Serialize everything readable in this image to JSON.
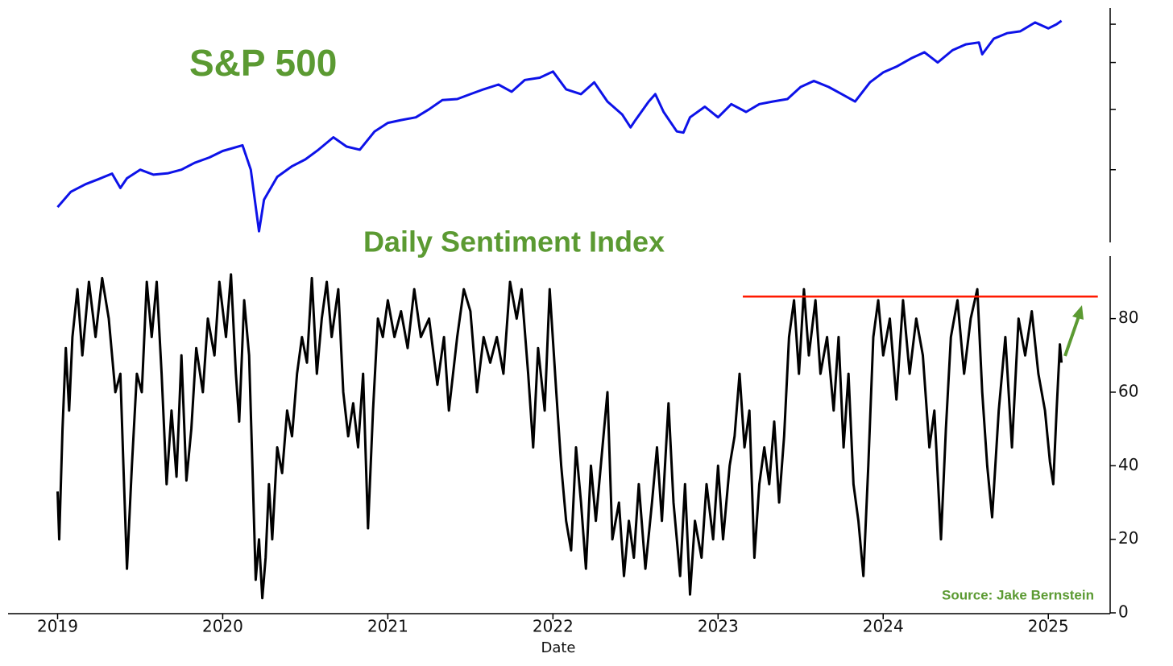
{
  "chart_data": [
    {
      "type": "line",
      "title": "S&P 500",
      "color": "#0d12e8",
      "log_scale": true,
      "tick_labels": false,
      "xlim": [
        2018.7,
        2025.36
      ],
      "ylim": [
        2130,
        6480
      ],
      "yticks": [
        3000,
        4000,
        5000,
        6000
      ],
      "x": [
        2019.0,
        2019.08,
        2019.17,
        2019.25,
        2019.33,
        2019.38,
        2019.42,
        2019.5,
        2019.58,
        2019.67,
        2019.75,
        2019.83,
        2019.92,
        2020.0,
        2020.12,
        2020.17,
        2020.22,
        2020.25,
        2020.33,
        2020.42,
        2020.5,
        2020.58,
        2020.67,
        2020.75,
        2020.83,
        2020.92,
        2021.0,
        2021.08,
        2021.17,
        2021.25,
        2021.33,
        2021.42,
        2021.5,
        2021.58,
        2021.67,
        2021.75,
        2021.83,
        2021.92,
        2022.0,
        2022.08,
        2022.17,
        2022.25,
        2022.33,
        2022.42,
        2022.47,
        2022.5,
        2022.58,
        2022.62,
        2022.67,
        2022.75,
        2022.79,
        2022.83,
        2022.92,
        2023.0,
        2023.08,
        2023.17,
        2023.25,
        2023.33,
        2023.42,
        2023.5,
        2023.58,
        2023.67,
        2023.75,
        2023.83,
        2023.92,
        2024.0,
        2024.08,
        2024.17,
        2024.25,
        2024.33,
        2024.42,
        2024.5,
        2024.58,
        2024.6,
        2024.67,
        2024.75,
        2024.83,
        2024.92,
        2025.0,
        2025.05,
        2025.08
      ],
      "values": [
        2510,
        2700,
        2800,
        2870,
        2945,
        2750,
        2880,
        3000,
        2930,
        2950,
        3000,
        3100,
        3180,
        3280,
        3370,
        3000,
        2237,
        2600,
        2900,
        3050,
        3150,
        3300,
        3500,
        3350,
        3300,
        3600,
        3750,
        3800,
        3850,
        4000,
        4180,
        4200,
        4300,
        4400,
        4500,
        4350,
        4600,
        4650,
        4790,
        4400,
        4300,
        4550,
        4150,
        3900,
        3670,
        3800,
        4150,
        4300,
        3950,
        3600,
        3580,
        3850,
        4050,
        3850,
        4100,
        3950,
        4100,
        4150,
        4200,
        4450,
        4580,
        4450,
        4300,
        4150,
        4550,
        4770,
        4900,
        5100,
        5250,
        5000,
        5300,
        5450,
        5500,
        5200,
        5600,
        5750,
        5800,
        6050,
        5880,
        6000,
        6100
      ]
    },
    {
      "type": "line",
      "title": "Daily Sentiment Index",
      "color": "#000000",
      "xlabel": "Date",
      "annotation": "Source: Jake Bernstein",
      "xlim": [
        2018.7,
        2025.36
      ],
      "xticks": [
        2019,
        2020,
        2021,
        2022,
        2023,
        2024,
        2025
      ],
      "ylim": [
        0,
        97
      ],
      "yticks": [
        0,
        20,
        40,
        60,
        80
      ],
      "hline": {
        "value": 86,
        "xmin": 2023.15,
        "xmax": 2025.3,
        "color": "#ff1a00"
      },
      "x": [
        2019.0,
        2019.01,
        2019.03,
        2019.05,
        2019.07,
        2019.09,
        2019.12,
        2019.15,
        2019.19,
        2019.23,
        2019.27,
        2019.31,
        2019.35,
        2019.38,
        2019.4,
        2019.42,
        2019.45,
        2019.48,
        2019.51,
        2019.54,
        2019.57,
        2019.6,
        2019.63,
        2019.66,
        2019.69,
        2019.72,
        2019.75,
        2019.78,
        2019.81,
        2019.84,
        2019.88,
        2019.91,
        2019.95,
        2019.98,
        2020.02,
        2020.05,
        2020.08,
        2020.1,
        2020.13,
        2020.16,
        2020.18,
        2020.2,
        2020.22,
        2020.24,
        2020.26,
        2020.28,
        2020.3,
        2020.33,
        2020.36,
        2020.39,
        2020.42,
        2020.45,
        2020.48,
        2020.51,
        2020.54,
        2020.57,
        2020.6,
        2020.63,
        2020.66,
        2020.7,
        2020.73,
        2020.76,
        2020.79,
        2020.82,
        2020.85,
        2020.88,
        2020.91,
        2020.94,
        2020.97,
        2021.0,
        2021.04,
        2021.08,
        2021.12,
        2021.16,
        2021.2,
        2021.25,
        2021.3,
        2021.34,
        2021.37,
        2021.42,
        2021.46,
        2021.5,
        2021.54,
        2021.58,
        2021.62,
        2021.66,
        2021.7,
        2021.74,
        2021.78,
        2021.81,
        2021.85,
        2021.88,
        2021.91,
        2021.95,
        2021.98,
        2022.02,
        2022.05,
        2022.08,
        2022.11,
        2022.14,
        2022.17,
        2022.2,
        2022.23,
        2022.26,
        2022.3,
        2022.33,
        2022.36,
        2022.4,
        2022.43,
        2022.46,
        2022.49,
        2022.52,
        2022.56,
        2022.6,
        2022.63,
        2022.66,
        2022.7,
        2022.73,
        2022.77,
        2022.8,
        2022.83,
        2022.86,
        2022.9,
        2022.93,
        2022.97,
        2023.0,
        2023.03,
        2023.07,
        2023.1,
        2023.13,
        2023.16,
        2023.19,
        2023.22,
        2023.25,
        2023.28,
        2023.31,
        2023.34,
        2023.37,
        2023.4,
        2023.43,
        2023.46,
        2023.49,
        2023.52,
        2023.55,
        2023.59,
        2023.62,
        2023.66,
        2023.7,
        2023.73,
        2023.76,
        2023.79,
        2023.82,
        2023.85,
        2023.88,
        2023.91,
        2023.94,
        2023.97,
        2024.0,
        2024.04,
        2024.08,
        2024.12,
        2024.16,
        2024.2,
        2024.24,
        2024.28,
        2024.31,
        2024.35,
        2024.38,
        2024.41,
        2024.45,
        2024.49,
        2024.53,
        2024.57,
        2024.6,
        2024.63,
        2024.66,
        2024.7,
        2024.74,
        2024.78,
        2024.82,
        2024.86,
        2024.9,
        2024.94,
        2024.98,
        2025.01,
        2025.03,
        2025.05,
        2025.07,
        2025.08
      ],
      "values": [
        33,
        20,
        50,
        72,
        55,
        75,
        88,
        70,
        90,
        75,
        91,
        80,
        60,
        65,
        38,
        12,
        40,
        65,
        60,
        90,
        75,
        90,
        65,
        35,
        55,
        37,
        70,
        36,
        50,
        72,
        60,
        80,
        70,
        90,
        75,
        92,
        65,
        52,
        85,
        70,
        40,
        9,
        20,
        4,
        15,
        35,
        20,
        45,
        38,
        55,
        48,
        65,
        75,
        68,
        91,
        65,
        80,
        90,
        75,
        88,
        60,
        48,
        57,
        45,
        65,
        23,
        55,
        80,
        75,
        85,
        75,
        82,
        72,
        88,
        75,
        80,
        62,
        75,
        55,
        75,
        88,
        82,
        60,
        75,
        68,
        75,
        65,
        90,
        80,
        88,
        65,
        45,
        72,
        55,
        88,
        60,
        40,
        25,
        17,
        45,
        30,
        12,
        40,
        25,
        45,
        60,
        20,
        30,
        10,
        25,
        15,
        35,
        12,
        30,
        45,
        25,
        57,
        30,
        10,
        35,
        5,
        25,
        15,
        35,
        20,
        40,
        20,
        40,
        48,
        65,
        45,
        55,
        15,
        35,
        45,
        35,
        52,
        30,
        48,
        75,
        85,
        65,
        88,
        70,
        85,
        65,
        75,
        55,
        75,
        45,
        65,
        35,
        25,
        10,
        40,
        75,
        85,
        70,
        80,
        58,
        85,
        65,
        80,
        70,
        45,
        55,
        20,
        50,
        75,
        85,
        65,
        80,
        88,
        60,
        40,
        26,
        55,
        75,
        45,
        80,
        70,
        82,
        65,
        55,
        41,
        35,
        55,
        73,
        68
      ]
    }
  ]
}
